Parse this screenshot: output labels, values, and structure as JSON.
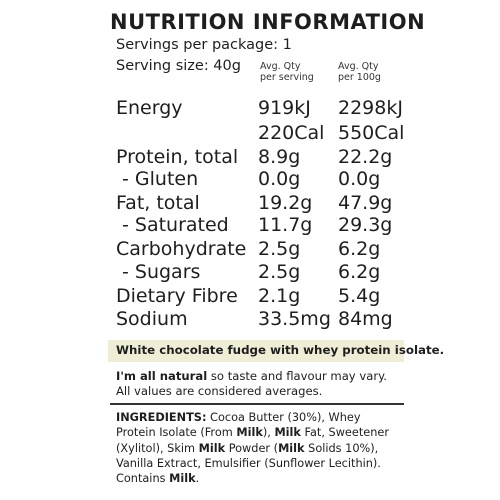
{
  "panel": {
    "title": "NUTRITION INFORMATION",
    "servings_per_package": "Servings per package: 1",
    "serving_size": "Serving size: 40g",
    "col_per_serving": [
      "Avg. Qty",
      "per serving"
    ],
    "col_per_100g": [
      "Avg. Qty",
      "per 100g"
    ]
  },
  "rows": [
    {
      "label": "Energy",
      "per_serving": "919kJ",
      "per_100g": "2298kJ"
    },
    {
      "label": "",
      "per_serving": "220Cal",
      "per_100g": "550Cal"
    },
    {
      "label": "Protein, total",
      "per_serving": "8.9g",
      "per_100g": "22.2g"
    },
    {
      "label": "- Gluten",
      "per_serving": "0.0g",
      "per_100g": "0.0g"
    },
    {
      "label": "Fat, total",
      "per_serving": "19.2g",
      "per_100g": "47.9g"
    },
    {
      "label": "- Saturated",
      "per_serving": "11.7g",
      "per_100g": "29.3g"
    },
    {
      "label": "Carbohydrate",
      "per_serving": "2.5g",
      "per_100g": "6.2g"
    },
    {
      "label": "- Sugars",
      "per_serving": "2.5g",
      "per_100g": "6.2g"
    },
    {
      "label": "Dietary Fibre",
      "per_serving": "2.1g",
      "per_100g": "5.4g"
    },
    {
      "label": "Sodium",
      "per_serving": "33.5mg",
      "per_100g": "84mg"
    }
  ],
  "description": "White chocolate fudge with whey protein isolate.",
  "natural_note": {
    "bold": "I'm all natural",
    "rest": " so taste and flavour may vary.",
    "averages": "All values are considered averages."
  },
  "ingredients": {
    "lines": [
      [
        {
          "t": "INGREDIENTS:",
          "b": true
        },
        {
          "t": " Cocoa Butter (30%), Whey",
          "b": false
        }
      ],
      [
        {
          "t": "Protein Isolate (From ",
          "b": false
        },
        {
          "t": "Milk",
          "b": true
        },
        {
          "t": "), ",
          "b": false
        },
        {
          "t": "Milk",
          "b": true
        },
        {
          "t": " Fat, Sweetener",
          "b": false
        }
      ],
      [
        {
          "t": "(Xylitol), Skim ",
          "b": false
        },
        {
          "t": "Milk",
          "b": true
        },
        {
          "t": " Powder (",
          "b": false
        },
        {
          "t": "Milk",
          "b": true
        },
        {
          "t": " Solids 10%),",
          "b": false
        }
      ],
      [
        {
          "t": "Vanilla Extract, Emulsifier (Sunflower Lecithin).",
          "b": false
        }
      ],
      [
        {
          "t": "Contains ",
          "b": false
        },
        {
          "t": "Milk",
          "b": true
        },
        {
          "t": ".",
          "b": false
        }
      ]
    ]
  }
}
